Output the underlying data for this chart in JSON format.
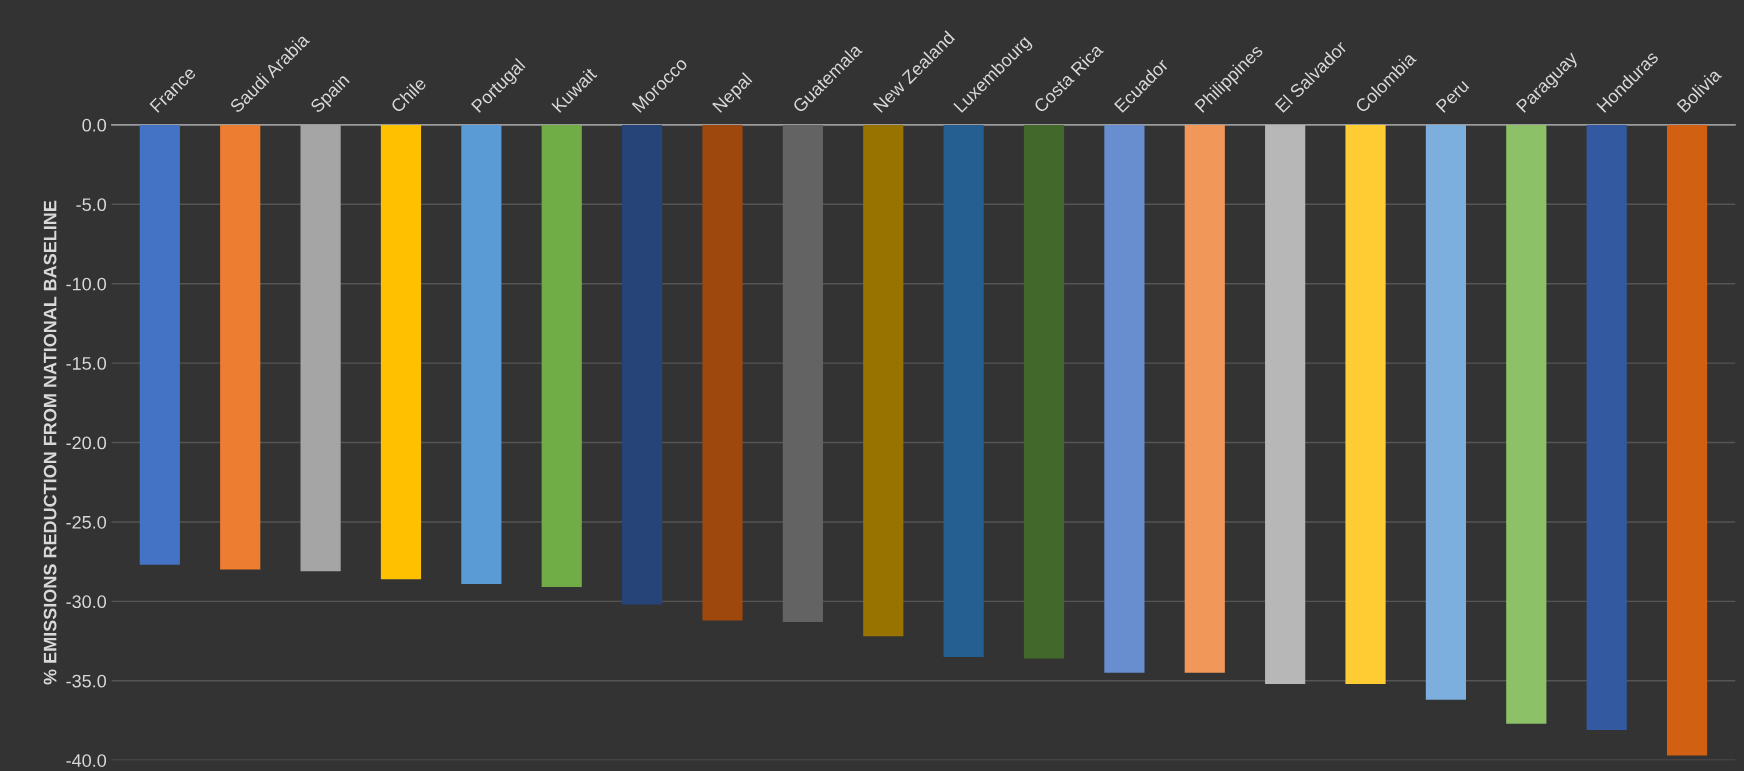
{
  "chart_data": {
    "type": "bar",
    "ylabel": "% EMISSIONS REDUCTION FROM NATIONAL BASELINE",
    "categories": [
      "France",
      "Saudi Arabia",
      "Spain",
      "Chile",
      "Portugal",
      "Kuwait",
      "Morocco",
      "Nepal",
      "Guatemala",
      "New Zealand",
      "Luxembourg",
      "Costa Rica",
      "Ecuador",
      "Philippines",
      "El Salvador",
      "Colombia",
      "Peru",
      "Paraguay",
      "Honduras",
      "Bolivia"
    ],
    "values": [
      -27.7,
      -28.0,
      -28.1,
      -28.6,
      -28.9,
      -29.1,
      -30.2,
      -31.2,
      -31.3,
      -32.2,
      -33.5,
      -33.6,
      -34.5,
      -34.5,
      -35.2,
      -35.2,
      -36.2,
      -37.7,
      -38.1,
      -39.7
    ],
    "colors": [
      "#4472c4",
      "#ed7d31",
      "#a5a5a5",
      "#ffc000",
      "#5b9bd5",
      "#70ad47",
      "#264478",
      "#9e480e",
      "#636363",
      "#997300",
      "#255e91",
      "#43682b",
      "#698ed0",
      "#f1975a",
      "#b7b7b7",
      "#ffcd33",
      "#7cafdd",
      "#8cc168",
      "#335aa1",
      "#d26012"
    ],
    "ylim": [
      -40,
      0
    ],
    "yticks": [
      {
        "value": 0,
        "label": "0.0"
      },
      {
        "value": -5,
        "label": "-5.0"
      },
      {
        "value": -10,
        "label": "-10.0"
      },
      {
        "value": -15,
        "label": "-15.0"
      },
      {
        "value": -20,
        "label": "-20.0"
      },
      {
        "value": -25,
        "label": "-25.0"
      },
      {
        "value": -30,
        "label": "-30.0"
      },
      {
        "value": -35,
        "label": "-35.0"
      },
      {
        "value": -40,
        "label": "-40.0"
      }
    ],
    "grid": "y"
  }
}
